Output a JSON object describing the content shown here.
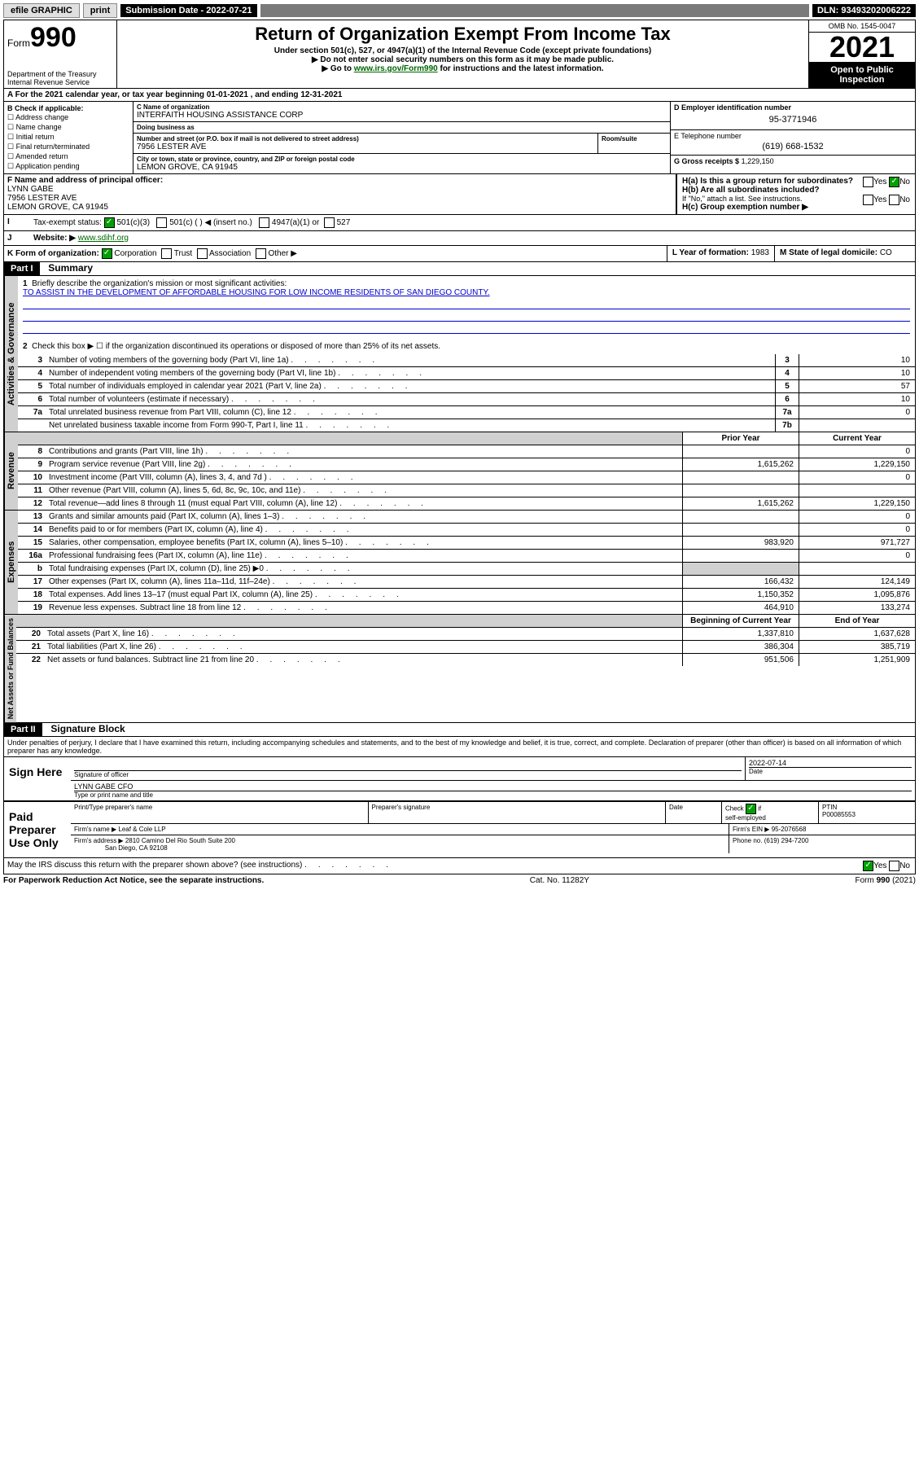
{
  "topbar": {
    "efile": "efile GRAPHIC",
    "print": "print",
    "subdate_label": "Submission Date - 2022-07-21",
    "dln": "DLN: 93493202006222"
  },
  "header": {
    "form_word": "Form",
    "form_num": "990",
    "dept": "Department of the Treasury",
    "irs": "Internal Revenue Service",
    "title": "Return of Organization Exempt From Income Tax",
    "sub1": "Under section 501(c), 527, or 4947(a)(1) of the Internal Revenue Code (except private foundations)",
    "sub2": "▶ Do not enter social security numbers on this form as it may be made public.",
    "sub3_pre": "▶ Go to ",
    "sub3_link": "www.irs.gov/Form990",
    "sub3_post": " for instructions and the latest information.",
    "omb": "OMB No. 1545-0047",
    "year": "2021",
    "open": "Open to Public",
    "inspection": "Inspection"
  },
  "A": {
    "text": "A For the 2021 calendar year, or tax year beginning 01-01-2021   , and ending 12-31-2021"
  },
  "B": {
    "label": "B Check if applicable:",
    "opts": [
      "Address change",
      "Name change",
      "Initial return",
      "Final return/terminated",
      "Amended return",
      "Application pending"
    ]
  },
  "C": {
    "name_lbl": "C Name of organization",
    "name": "INTERFAITH HOUSING ASSISTANCE CORP",
    "dba_lbl": "Doing business as",
    "dba": "",
    "addr_lbl": "Number and street (or P.O. box if mail is not delivered to street address)",
    "room_lbl": "Room/suite",
    "addr": "7956 LESTER AVE",
    "city_lbl": "City or town, state or province, country, and ZIP or foreign postal code",
    "city": "LEMON GROVE, CA  91945"
  },
  "D": {
    "lbl": "D Employer identification number",
    "val": "95-3771946"
  },
  "E": {
    "lbl": "E Telephone number",
    "val": "(619) 668-1532"
  },
  "G": {
    "lbl": "G Gross receipts $",
    "val": "1,229,150"
  },
  "F": {
    "lbl": "F Name and address of principal officer:",
    "name": "LYNN GABE",
    "addr1": "7956 LESTER AVE",
    "addr2": "LEMON GROVE, CA  91945"
  },
  "H": {
    "a": "H(a)  Is this a group return for subordinates?",
    "b": "H(b)  Are all subordinates included?",
    "b_note": "If \"No,\" attach a list. See instructions.",
    "c": "H(c)  Group exemption number ▶",
    "yes": "Yes",
    "no": "No"
  },
  "I": {
    "lbl": "Tax-exempt status:",
    "o1": "501(c)(3)",
    "o2": "501(c) (   ) ◀ (insert no.)",
    "o3": "4947(a)(1) or",
    "o4": "527"
  },
  "J": {
    "lbl": "Website: ▶",
    "val": "www.sdihf.org"
  },
  "K": {
    "lbl": "K Form of organization:",
    "corp": "Corporation",
    "trust": "Trust",
    "assoc": "Association",
    "other": "Other ▶"
  },
  "L": {
    "lbl": "L Year of formation:",
    "val": "1983"
  },
  "M": {
    "lbl": "M State of legal domicile:",
    "val": "CO"
  },
  "part1": {
    "hdr": "Part I",
    "title": "Summary",
    "l1": "Briefly describe the organization's mission or most significant activities:",
    "mission": "TO ASSIST IN THE DEVELOPMENT OF AFFORDABLE HOUSING FOR LOW INCOME RESIDENTS OF SAN DIEGO COUNTY.",
    "l2": "Check this box ▶ ☐  if the organization discontinued its operations or disposed of more than 25% of its net assets.",
    "tabs": {
      "gov": "Activities & Governance",
      "rev": "Revenue",
      "exp": "Expenses",
      "net": "Net Assets or Fund Balances"
    },
    "col_prior": "Prior Year",
    "col_curr": "Current Year",
    "col_boy": "Beginning of Current Year",
    "col_eoy": "End of Year",
    "lines_gov": [
      {
        "n": "3",
        "t": "Number of voting members of the governing body (Part VI, line 1a)",
        "box": "3",
        "v": "10"
      },
      {
        "n": "4",
        "t": "Number of independent voting members of the governing body (Part VI, line 1b)",
        "box": "4",
        "v": "10"
      },
      {
        "n": "5",
        "t": "Total number of individuals employed in calendar year 2021 (Part V, line 2a)",
        "box": "5",
        "v": "57"
      },
      {
        "n": "6",
        "t": "Total number of volunteers (estimate if necessary)",
        "box": "6",
        "v": "10"
      },
      {
        "n": "7a",
        "t": "Total unrelated business revenue from Part VIII, column (C), line 12",
        "box": "7a",
        "v": "0"
      },
      {
        "n": "",
        "t": "Net unrelated business taxable income from Form 990-T, Part I, line 11",
        "box": "7b",
        "v": ""
      }
    ],
    "lines_rev": [
      {
        "n": "8",
        "t": "Contributions and grants (Part VIII, line 1h)",
        "p": "",
        "c": "0"
      },
      {
        "n": "9",
        "t": "Program service revenue (Part VIII, line 2g)",
        "p": "1,615,262",
        "c": "1,229,150"
      },
      {
        "n": "10",
        "t": "Investment income (Part VIII, column (A), lines 3, 4, and 7d )",
        "p": "",
        "c": "0"
      },
      {
        "n": "11",
        "t": "Other revenue (Part VIII, column (A), lines 5, 6d, 8c, 9c, 10c, and 11e)",
        "p": "",
        "c": ""
      },
      {
        "n": "12",
        "t": "Total revenue—add lines 8 through 11 (must equal Part VIII, column (A), line 12)",
        "p": "1,615,262",
        "c": "1,229,150"
      }
    ],
    "lines_exp": [
      {
        "n": "13",
        "t": "Grants and similar amounts paid (Part IX, column (A), lines 1–3)",
        "p": "",
        "c": "0"
      },
      {
        "n": "14",
        "t": "Benefits paid to or for members (Part IX, column (A), line 4)",
        "p": "",
        "c": "0"
      },
      {
        "n": "15",
        "t": "Salaries, other compensation, employee benefits (Part IX, column (A), lines 5–10)",
        "p": "983,920",
        "c": "971,727"
      },
      {
        "n": "16a",
        "t": "Professional fundraising fees (Part IX, column (A), line 11e)",
        "p": "",
        "c": "0"
      },
      {
        "n": "b",
        "t": "Total fundraising expenses (Part IX, column (D), line 25) ▶0",
        "p": "—shade—",
        "c": "—shade—"
      },
      {
        "n": "17",
        "t": "Other expenses (Part IX, column (A), lines 11a–11d, 11f–24e)",
        "p": "166,432",
        "c": "124,149"
      },
      {
        "n": "18",
        "t": "Total expenses. Add lines 13–17 (must equal Part IX, column (A), line 25)",
        "p": "1,150,352",
        "c": "1,095,876"
      },
      {
        "n": "19",
        "t": "Revenue less expenses. Subtract line 18 from line 12",
        "p": "464,910",
        "c": "133,274"
      }
    ],
    "lines_net": [
      {
        "n": "20",
        "t": "Total assets (Part X, line 16)",
        "p": "1,337,810",
        "c": "1,637,628"
      },
      {
        "n": "21",
        "t": "Total liabilities (Part X, line 26)",
        "p": "386,304",
        "c": "385,719"
      },
      {
        "n": "22",
        "t": "Net assets or fund balances. Subtract line 21 from line 20",
        "p": "951,506",
        "c": "1,251,909"
      }
    ]
  },
  "part2": {
    "hdr": "Part II",
    "title": "Signature Block",
    "intro": "Under penalties of perjury, I declare that I have examined this return, including accompanying schedules and statements, and to the best of my knowledge and belief, it is true, correct, and complete. Declaration of preparer (other than officer) is based on all information of which preparer has any knowledge.",
    "sign_here": "Sign Here",
    "sig_officer": "Signature of officer",
    "sig_date": "2022-07-14",
    "date_lbl": "Date",
    "officer_name": "LYNN GABE CFO",
    "type_name": "Type or print name and title",
    "paid": "Paid Preparer Use Only",
    "prep_name_lbl": "Print/Type preparer's name",
    "prep_sig_lbl": "Preparer's signature",
    "check_if": "Check ☑ if self-employed",
    "ptin_lbl": "PTIN",
    "ptin": "P00085553",
    "firm_name_lbl": "Firm's name   ▶",
    "firm_name": "Leaf & Cole LLP",
    "firm_ein_lbl": "Firm's EIN ▶",
    "firm_ein": "95-2076568",
    "firm_addr_lbl": "Firm's address ▶",
    "firm_addr1": "2810 Camino Del Rio South Suite 200",
    "firm_addr2": "San Diego, CA  92108",
    "phone_lbl": "Phone no.",
    "phone": "(619) 294-7200",
    "may_irs": "May the IRS discuss this return with the preparer shown above? (see instructions)"
  },
  "footer": {
    "pra": "For Paperwork Reduction Act Notice, see the separate instructions.",
    "cat": "Cat. No. 11282Y",
    "form": "Form 990 (2021)"
  }
}
